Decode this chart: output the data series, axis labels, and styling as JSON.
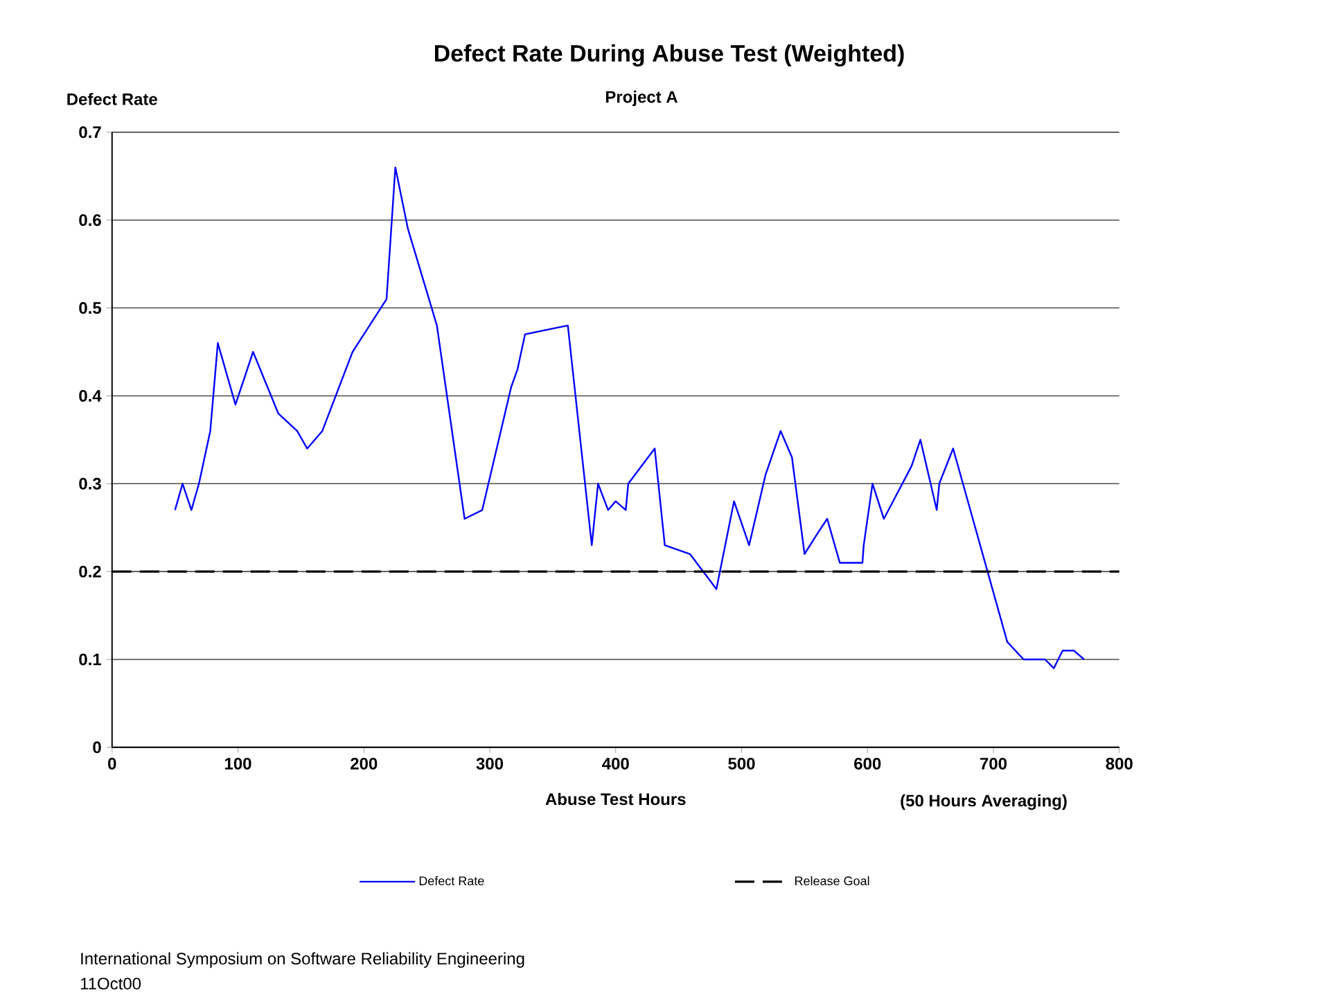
{
  "chart_data": {
    "type": "line",
    "title": "Defect Rate During Abuse Test (Weighted)",
    "subtitle": "Project A",
    "ylabel": "Defect Rate",
    "xlabel": "Abuse Test Hours",
    "annotations": [
      "(50 Hours Averaging)",
      "International Symposium on Software Reliability Engineering",
      "11Oct00"
    ],
    "xlim": [
      0,
      800
    ],
    "xticks": [
      0,
      100,
      200,
      300,
      400,
      500,
      600,
      700,
      800
    ],
    "ylim": [
      0,
      0.7
    ],
    "yticks": [
      0,
      0.1,
      0.2,
      0.3,
      0.4,
      0.5,
      0.6,
      0.7
    ],
    "grid": "y",
    "legend": "bottom",
    "series": [
      {
        "name": "Defect Rate",
        "color": "#0000ff",
        "line_style": "solid",
        "x": [
          50,
          56,
          63,
          69,
          78,
          84,
          98,
          112,
          132,
          147,
          155,
          167,
          191,
          218,
          225,
          235,
          258,
          280,
          294,
          317,
          322,
          328,
          362,
          381,
          386,
          394,
          400,
          408,
          410,
          431,
          439,
          459,
          480,
          494,
          506,
          519,
          531,
          540,
          550,
          561,
          568,
          578,
          596,
          597,
          604,
          613,
          635,
          642,
          655,
          657,
          668,
          711,
          724,
          741,
          748,
          755,
          764,
          772
        ],
        "values": [
          0.27,
          0.3,
          0.27,
          0.3,
          0.36,
          0.46,
          0.39,
          0.45,
          0.38,
          0.36,
          0.34,
          0.36,
          0.45,
          0.51,
          0.66,
          0.59,
          0.48,
          0.26,
          0.27,
          0.41,
          0.43,
          0.47,
          0.48,
          0.23,
          0.3,
          0.27,
          0.28,
          0.27,
          0.3,
          0.34,
          0.23,
          0.22,
          0.18,
          0.28,
          0.23,
          0.31,
          0.36,
          0.33,
          0.22,
          0.245,
          0.26,
          0.21,
          0.21,
          0.23,
          0.3,
          0.26,
          0.32,
          0.35,
          0.27,
          0.3,
          0.34,
          0.12,
          0.1,
          0.1,
          0.09,
          0.11,
          0.11,
          0.1
        ]
      },
      {
        "name": "Release Goal",
        "color": "#000000",
        "line_style": "dashed",
        "x": [
          0,
          800
        ],
        "values": [
          0.2,
          0.2
        ]
      }
    ]
  }
}
